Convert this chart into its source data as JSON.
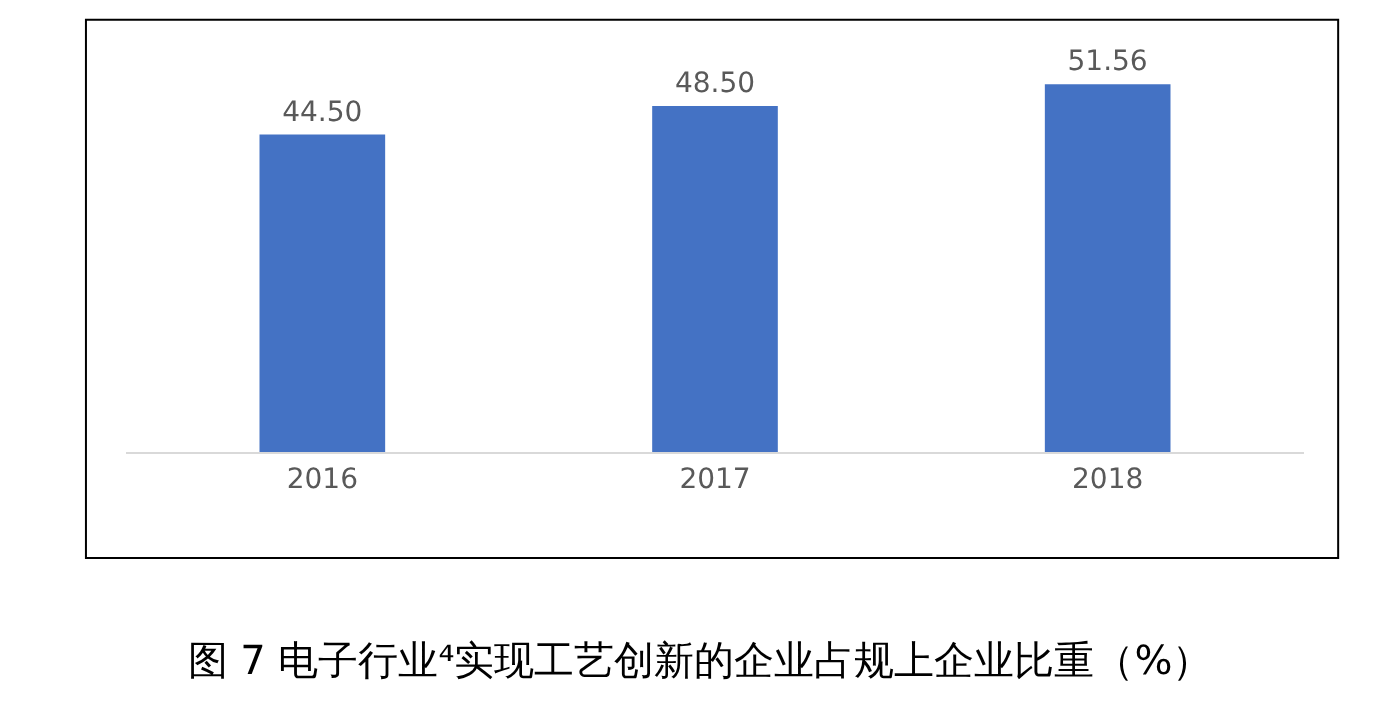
{
  "chart_data": {
    "type": "bar",
    "title": "图 7 电子行业⁴实现工艺创新的企业占规上企业比重（%）",
    "categories": [
      "2016",
      "2017",
      "2018"
    ],
    "values": [
      44.5,
      48.5,
      51.56
    ],
    "value_labels": [
      "44.50",
      "48.50",
      "51.56"
    ],
    "color": "#4472c4",
    "tick_labels": "x"
  }
}
